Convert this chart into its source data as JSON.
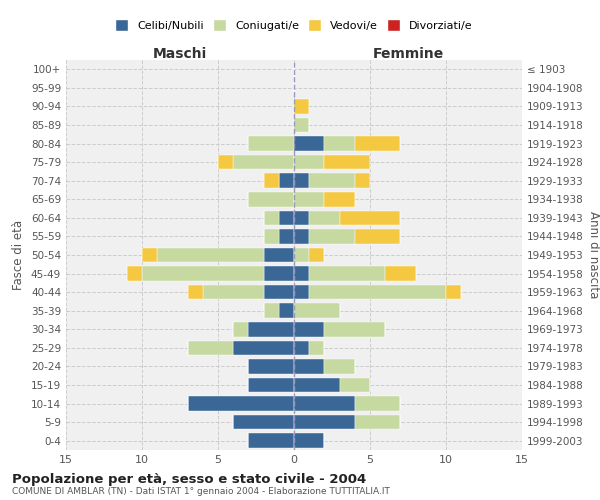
{
  "age_groups": [
    "0-4",
    "5-9",
    "10-14",
    "15-19",
    "20-24",
    "25-29",
    "30-34",
    "35-39",
    "40-44",
    "45-49",
    "50-54",
    "55-59",
    "60-64",
    "65-69",
    "70-74",
    "75-79",
    "80-84",
    "85-89",
    "90-94",
    "95-99",
    "100+"
  ],
  "birth_years": [
    "1999-2003",
    "1994-1998",
    "1989-1993",
    "1984-1988",
    "1979-1983",
    "1974-1978",
    "1969-1973",
    "1964-1968",
    "1959-1963",
    "1954-1958",
    "1949-1953",
    "1944-1948",
    "1939-1943",
    "1934-1938",
    "1929-1933",
    "1924-1928",
    "1919-1923",
    "1914-1918",
    "1909-1913",
    "1904-1908",
    "≤ 1903"
  ],
  "males": {
    "celibe": [
      3,
      4,
      7,
      3,
      3,
      4,
      3,
      1,
      2,
      2,
      2,
      1,
      1,
      0,
      1,
      0,
      0,
      0,
      0,
      0,
      0
    ],
    "coniugato": [
      0,
      0,
      0,
      0,
      0,
      3,
      1,
      1,
      4,
      8,
      7,
      1,
      1,
      3,
      0,
      4,
      3,
      0,
      0,
      0,
      0
    ],
    "vedovo": [
      0,
      0,
      0,
      0,
      0,
      0,
      0,
      0,
      1,
      1,
      1,
      0,
      0,
      0,
      1,
      1,
      0,
      0,
      0,
      0,
      0
    ],
    "divorziato": [
      0,
      0,
      0,
      0,
      0,
      0,
      0,
      0,
      0,
      0,
      0,
      0,
      0,
      0,
      0,
      0,
      0,
      0,
      0,
      0,
      0
    ]
  },
  "females": {
    "nubile": [
      2,
      4,
      4,
      3,
      2,
      1,
      2,
      0,
      1,
      1,
      0,
      1,
      1,
      0,
      1,
      0,
      2,
      0,
      0,
      0,
      0
    ],
    "coniugata": [
      0,
      3,
      3,
      2,
      2,
      1,
      4,
      3,
      9,
      5,
      1,
      3,
      2,
      2,
      3,
      2,
      2,
      1,
      0,
      0,
      0
    ],
    "vedova": [
      0,
      0,
      0,
      0,
      0,
      0,
      0,
      0,
      1,
      2,
      1,
      3,
      4,
      2,
      1,
      3,
      3,
      0,
      1,
      0,
      0
    ],
    "divorziata": [
      0,
      0,
      0,
      0,
      0,
      0,
      0,
      0,
      0,
      0,
      0,
      0,
      0,
      0,
      0,
      0,
      0,
      0,
      0,
      0,
      0
    ]
  },
  "color_celibe": "#3a6795",
  "color_coniugato": "#c5d9a0",
  "color_vedovo": "#f5c842",
  "color_divorziato": "#cc2222",
  "title": "Popolazione per età, sesso e stato civile - 2004",
  "subtitle": "COMUNE DI AMBLAR (TN) - Dati ISTAT 1° gennaio 2004 - Elaborazione TUTTITALIA.IT",
  "xlabel_left": "Maschi",
  "xlabel_right": "Femmine",
  "ylabel_left": "Fasce di età",
  "ylabel_right": "Anni di nascita",
  "xlim": 15,
  "bg_color": "#f0f0f0",
  "grid_color": "#cccccc"
}
